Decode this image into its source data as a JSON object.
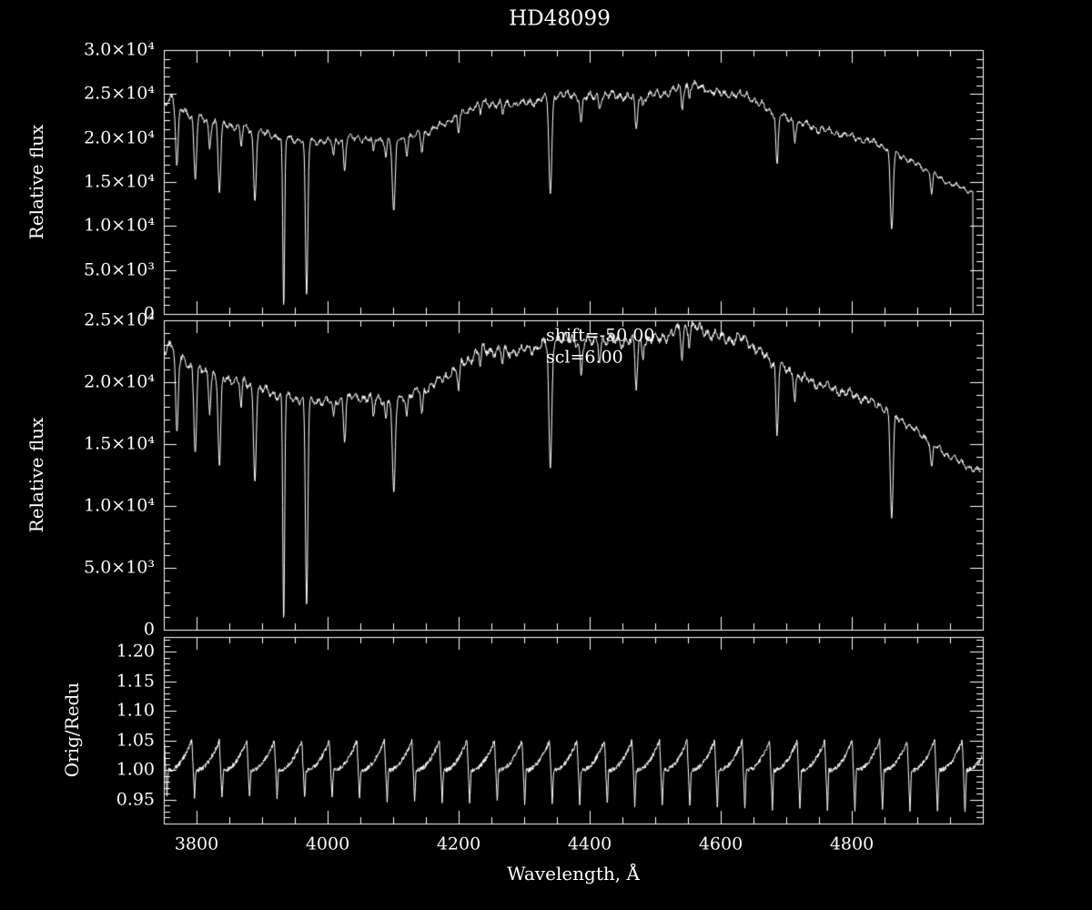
{
  "chart_data": {
    "type": "line",
    "title": "HD48099",
    "xlabel": "Wavelength, Å",
    "x_range": [
      3750,
      5000
    ],
    "x_ticks": [
      3800,
      4000,
      4200,
      4400,
      4600,
      4800
    ],
    "x_tick_labels": [
      "3800",
      "4000",
      "4200",
      "4400",
      "4600",
      "4800"
    ],
    "x_minor_step": 50,
    "grid": false,
    "colors": {
      "background": "#000000",
      "foreground": "#ffffff"
    },
    "panels": [
      {
        "name": "original-spectrum",
        "ylabel": "Relative flux",
        "y_range": [
          0,
          30000
        ],
        "y_ticks": [
          0,
          5000,
          10000,
          15000,
          20000,
          25000,
          30000
        ],
        "y_tick_labels": [
          "0",
          "5.0×10³",
          "1.0×10⁴",
          "1.5×10⁴",
          "2.0×10⁴",
          "2.5×10⁴",
          "3.0×10⁴"
        ],
        "y_minor_step": 1000,
        "scale": 1.035,
        "end_wavelength": 4985,
        "end_drop_to_zero": true
      },
      {
        "name": "reduced-spectrum",
        "ylabel": "Relative flux",
        "y_range": [
          0,
          25000
        ],
        "y_ticks": [
          0,
          5000,
          10000,
          15000,
          20000,
          25000
        ],
        "y_tick_labels": [
          "0",
          "5.0×10³",
          "1.0×10⁴",
          "1.5×10⁴",
          "2.0×10⁴",
          "2.5×10⁴"
        ],
        "y_minor_step": 1000,
        "scale": 0.975,
        "end_wavelength": 4997,
        "end_drop_to_zero": false,
        "annotations": [
          "shift=-50.00",
          "scl=6.00"
        ]
      },
      {
        "name": "ratio-orig-over-redu",
        "ylabel": "Orig/Redu",
        "y_range": [
          0.91,
          1.225
        ],
        "y_ticks": [
          0.95,
          1.0,
          1.05,
          1.1,
          1.15,
          1.2
        ],
        "y_tick_labels": [
          "0.95",
          "1.00",
          "1.05",
          "1.10",
          "1.15",
          "1.20"
        ],
        "y_minor_step": 0.01
      }
    ],
    "spectrum_model": {
      "comment": "continuum = [wavelength_A, relative_flux]; absorption_lines = [center_A, depth_fraction, sigma_A]",
      "continuum": [
        [
          3750,
          23200
        ],
        [
          3762,
          23800
        ],
        [
          3775,
          22600
        ],
        [
          3790,
          21900
        ],
        [
          3810,
          21400
        ],
        [
          3840,
          20900
        ],
        [
          3870,
          20500
        ],
        [
          3900,
          19900
        ],
        [
          3930,
          19400
        ],
        [
          3960,
          19100
        ],
        [
          4000,
          18900
        ],
        [
          4040,
          19300
        ],
        [
          4080,
          19100
        ],
        [
          4120,
          19300
        ],
        [
          4160,
          20200
        ],
        [
          4200,
          21800
        ],
        [
          4235,
          23200
        ],
        [
          4270,
          23000
        ],
        [
          4310,
          23200
        ],
        [
          4350,
          24200
        ],
        [
          4390,
          23800
        ],
        [
          4430,
          24000
        ],
        [
          4470,
          23800
        ],
        [
          4510,
          24200
        ],
        [
          4555,
          25200
        ],
        [
          4600,
          24200
        ],
        [
          4640,
          24000
        ],
        [
          4675,
          22300
        ],
        [
          4710,
          21200
        ],
        [
          4750,
          20300
        ],
        [
          4800,
          19500
        ],
        [
          4840,
          18700
        ],
        [
          4875,
          17400
        ],
        [
          4910,
          16000
        ],
        [
          4945,
          14500
        ],
        [
          4975,
          13600
        ],
        [
          5000,
          13000
        ]
      ],
      "absorption_lines": [
        [
          3770,
          0.3,
          2.0
        ],
        [
          3798,
          0.32,
          2.0
        ],
        [
          3820,
          0.14,
          1.6
        ],
        [
          3835,
          0.36,
          2.0
        ],
        [
          3868,
          0.1,
          1.4
        ],
        [
          3889,
          0.38,
          2.0
        ],
        [
          3933,
          0.97,
          1.4
        ],
        [
          3968,
          0.9,
          1.8
        ],
        [
          4009,
          0.08,
          1.4
        ],
        [
          4026,
          0.18,
          1.6
        ],
        [
          4070,
          0.08,
          1.4
        ],
        [
          4089,
          0.1,
          1.4
        ],
        [
          4101,
          0.42,
          2.2
        ],
        [
          4121,
          0.08,
          1.4
        ],
        [
          4144,
          0.1,
          1.5
        ],
        [
          4200,
          0.09,
          1.5
        ],
        [
          4233,
          0.05,
          1.3
        ],
        [
          4267,
          0.05,
          1.2
        ],
        [
          4340,
          0.45,
          2.2
        ],
        [
          4387,
          0.12,
          1.6
        ],
        [
          4415,
          0.05,
          1.4
        ],
        [
          4471,
          0.16,
          1.7
        ],
        [
          4481,
          0.05,
          1.2
        ],
        [
          4541,
          0.09,
          1.5
        ],
        [
          4552,
          0.05,
          1.3
        ],
        [
          4686,
          0.26,
          1.7
        ],
        [
          4713,
          0.09,
          1.4
        ],
        [
          4861,
          0.48,
          2.2
        ],
        [
          4922,
          0.14,
          1.6
        ]
      ],
      "noise_amplitude": 0.01
    },
    "ratio_model": {
      "comment": "sawtooth ramp to ~1.05 then dip to ~0.95 (dips deepen to the right), period in A",
      "mean": 1.0,
      "period": 42,
      "phase0": 3757,
      "peak": 0.05,
      "dip_base": 0.045,
      "dip_growth": 0.03,
      "noise": 0.004
    }
  }
}
